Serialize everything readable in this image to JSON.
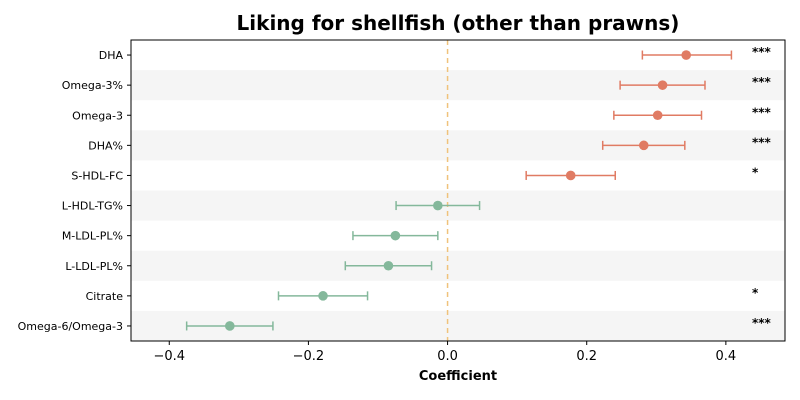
{
  "chart_data": {
    "type": "forest",
    "title": "Liking for shellfish (other than prawns)",
    "xlabel": "Coefficient",
    "xlim": [
      -0.455,
      0.485
    ],
    "xticks": [
      -0.4,
      -0.2,
      0.0,
      0.2,
      0.4
    ],
    "xtick_labels": [
      "−0.4",
      "−0.2",
      "0.0",
      "0.2",
      "0.4"
    ],
    "reference_line": 0,
    "colors": {
      "positive": "#e07b63",
      "negative": "#84b89b",
      "reference": "#f0c27b",
      "band": "#f5f5f5"
    },
    "points": [
      {
        "label": "DHA",
        "coef": 0.343,
        "lo": 0.28,
        "hi": 0.408,
        "sig": "***"
      },
      {
        "label": "Omega-3%",
        "coef": 0.309,
        "lo": 0.248,
        "hi": 0.37,
        "sig": "***"
      },
      {
        "label": "Omega-3",
        "coef": 0.302,
        "lo": 0.239,
        "hi": 0.365,
        "sig": "***"
      },
      {
        "label": "DHA%",
        "coef": 0.282,
        "lo": 0.223,
        "hi": 0.341,
        "sig": "***"
      },
      {
        "label": "S-HDL-FC",
        "coef": 0.177,
        "lo": 0.113,
        "hi": 0.241,
        "sig": "*"
      },
      {
        "label": "L-HDL-TG%",
        "coef": -0.014,
        "lo": -0.074,
        "hi": 0.046,
        "sig": ""
      },
      {
        "label": "M-LDL-PL%",
        "coef": -0.075,
        "lo": -0.136,
        "hi": -0.014,
        "sig": ""
      },
      {
        "label": "L-LDL-PL%",
        "coef": -0.085,
        "lo": -0.147,
        "hi": -0.023,
        "sig": ""
      },
      {
        "label": "Citrate",
        "coef": -0.179,
        "lo": -0.243,
        "hi": -0.115,
        "sig": "*"
      },
      {
        "label": "Omega-6/Omega-3",
        "coef": -0.313,
        "lo": -0.375,
        "hi": -0.251,
        "sig": "***"
      }
    ]
  }
}
